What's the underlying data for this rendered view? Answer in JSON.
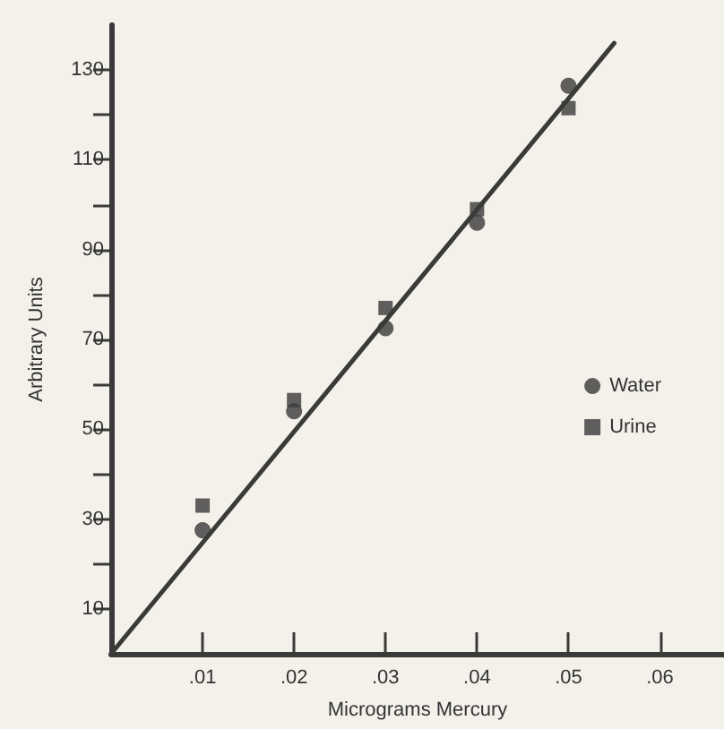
{
  "chart_data": {
    "type": "scatter",
    "xlabel": "Micrograms Mercury",
    "ylabel": "Arbitrary Units",
    "xlim": [
      0,
      0.067
    ],
    "ylim": [
      0,
      140
    ],
    "xticks": [
      {
        "value": 0.01,
        "label": ".01"
      },
      {
        "value": 0.02,
        "label": ".02"
      },
      {
        "value": 0.03,
        "label": ".03"
      },
      {
        "value": 0.04,
        "label": ".04"
      },
      {
        "value": 0.05,
        "label": ".05"
      },
      {
        "value": 0.06,
        "label": ".06"
      }
    ],
    "yticks": [
      10,
      {
        "value": 20,
        "label": null
      },
      30,
      {
        "value": 40,
        "label": null
      },
      50,
      {
        "value": 60,
        "label": null
      },
      70,
      {
        "value": 80,
        "label": null
      },
      90,
      {
        "value": 100,
        "label": null
      },
      110,
      {
        "value": 120,
        "label": null
      },
      130
    ],
    "x": [
      0.01,
      0.02,
      0.03,
      0.04,
      0.05
    ],
    "series": [
      {
        "name": "Water",
        "color": "#3a3a38",
        "marker": "circle",
        "values": [
          27.5,
          54,
          72.5,
          96,
          126.5
        ]
      },
      {
        "name": "Urine",
        "color": "#3a3a38",
        "marker": "square",
        "values": [
          33,
          56.5,
          77,
          99,
          121.5
        ]
      },
      {
        "type": "line",
        "color": "#3a3a38",
        "line_style": "solid",
        "marker": "none",
        "x": [
          0,
          0.055
        ],
        "values": [
          0,
          136
        ]
      }
    ],
    "grid": false,
    "legend": "right"
  }
}
